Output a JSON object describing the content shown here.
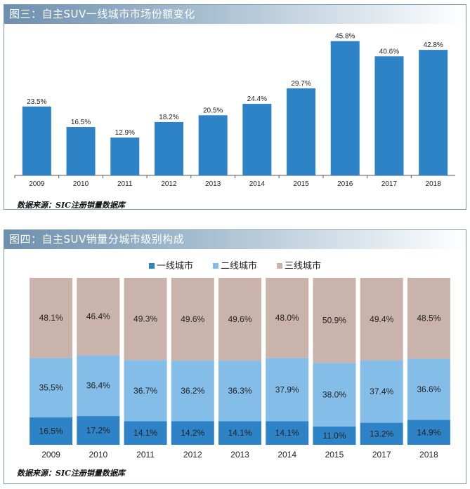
{
  "colors": {
    "bar": "#2e83c6",
    "tier1": "#2e83c6",
    "tier2": "#84bde8",
    "tier3": "#c9b3aa"
  },
  "panel1": {
    "title": "图三：自主SUV一线城市市场份额变化",
    "source": "数据来源：SIC注册销量数据库"
  },
  "panel2": {
    "title": "图四：自主SUV销量分城市级别构成",
    "source": "数据来源：SIC注册销量数据库"
  },
  "chart_data": [
    {
      "type": "bar",
      "categories": [
        "2009",
        "2010",
        "2011",
        "2012",
        "2013",
        "2014",
        "2015",
        "2016",
        "2017",
        "2018"
      ],
      "values": [
        23.5,
        16.5,
        12.9,
        18.2,
        20.5,
        24.4,
        29.7,
        45.8,
        40.6,
        42.8
      ],
      "data_labels": [
        "23.5%",
        "16.5%",
        "12.9%",
        "18.2%",
        "20.5%",
        "24.4%",
        "29.7%",
        "45.8%",
        "40.6%",
        "42.8%"
      ],
      "ylim": [
        0,
        50
      ],
      "grid": false
    },
    {
      "type": "bar",
      "stacked": true,
      "normalized": true,
      "categories": [
        "2009",
        "2010",
        "2011",
        "2012",
        "2013",
        "2014",
        "2015",
        "2017",
        "2018"
      ],
      "legend_position": "top",
      "series": [
        {
          "name": "一线城市",
          "values": [
            16.5,
            17.2,
            14.1,
            14.2,
            14.1,
            14.1,
            11.0,
            13.2,
            14.9
          ],
          "labels": [
            "16.5%",
            "17.2%",
            "14.1%",
            "14.2%",
            "14.1%",
            "14.1%",
            "11.0%",
            "13.2%",
            "14.9%"
          ]
        },
        {
          "name": "二线城市",
          "values": [
            35.5,
            36.4,
            36.7,
            36.2,
            36.3,
            37.9,
            38.0,
            37.4,
            36.6
          ],
          "labels": [
            "35.5%",
            "36.4%",
            "36.7%",
            "36.2%",
            "36.3%",
            "37.9%",
            "38.0%",
            "37.4%",
            "36.6%"
          ]
        },
        {
          "name": "三线城市",
          "values": [
            48.1,
            46.4,
            49.3,
            49.6,
            49.6,
            48.0,
            50.9,
            49.4,
            48.5
          ],
          "labels": [
            "48.1%",
            "46.4%",
            "49.3%",
            "49.6%",
            "49.6%",
            "48.0%",
            "50.9%",
            "49.4%",
            "48.5%"
          ]
        }
      ]
    }
  ]
}
